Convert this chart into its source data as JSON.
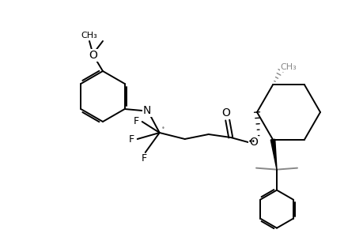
{
  "bg_color": "#ffffff",
  "line_color": "#000000",
  "gray_color": "#888888",
  "lw": 1.4,
  "figsize": [
    4.6,
    3.0
  ],
  "dpi": 100,
  "ring_r": 32,
  "ph_r": 24,
  "ch_r": 40,
  "methoxy_text": "O",
  "N_text": "N",
  "F_text": "F",
  "O_text": "O",
  "CH3_text": "CH₃"
}
